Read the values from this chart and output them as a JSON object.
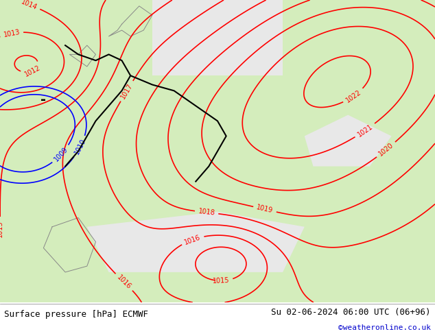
{
  "title_left": "Surface pressure [hPa] ECMWF",
  "title_right": "Su 02-06-2024 06:00 UTC (06+96)",
  "credit": "©weatheronline.co.uk",
  "bg_color": "#f0f0f0",
  "map_bg_light": "#d4edbc",
  "map_bg_sea": "#e8e8e8",
  "contour_color_red": "#ff0000",
  "contour_color_black": "#000000",
  "contour_color_blue": "#0000ff",
  "border_color": "#888888",
  "bottom_bar_color": "#ffffff",
  "credit_color": "#0000cc",
  "font_size_label": 9,
  "font_size_bottom": 9,
  "fig_width": 6.34,
  "fig_height": 4.9
}
